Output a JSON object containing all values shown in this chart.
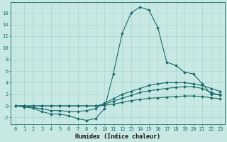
{
  "title": "",
  "xlabel": "Humidex (Indice chaleur)",
  "ylabel": "",
  "bg_color": "#c8e8e4",
  "grid_color": "#a8d4d0",
  "line_color": "#1a6b6b",
  "spine_color": "#1a6b6b",
  "xlim": [
    -0.5,
    23.5
  ],
  "ylim": [
    -3.2,
    17.8
  ],
  "x": [
    0,
    1,
    2,
    3,
    4,
    5,
    6,
    7,
    8,
    9,
    10,
    11,
    12,
    13,
    14,
    15,
    16,
    17,
    18,
    19,
    20,
    21,
    22,
    23
  ],
  "line1": [
    0.0,
    -0.2,
    -0.4,
    -1.0,
    -1.4,
    -1.4,
    -1.7,
    -2.2,
    -2.5,
    -2.2,
    -0.5,
    5.5,
    12.5,
    16.0,
    17.0,
    16.5,
    13.5,
    7.5,
    7.0,
    5.8,
    5.5,
    3.8,
    2.0,
    2.0
  ],
  "line2": [
    0.0,
    0.0,
    -0.3,
    -0.5,
    -0.8,
    -0.8,
    -1.0,
    -1.0,
    -0.8,
    -0.5,
    0.5,
    1.2,
    2.0,
    2.5,
    3.0,
    3.5,
    3.8,
    4.0,
    4.0,
    4.0,
    3.8,
    3.5,
    3.0,
    2.5
  ],
  "line3": [
    0.0,
    0.0,
    0.0,
    0.0,
    0.0,
    0.0,
    0.0,
    0.0,
    0.0,
    0.0,
    0.3,
    0.8,
    1.3,
    1.8,
    2.3,
    2.6,
    2.8,
    3.0,
    3.2,
    3.3,
    3.3,
    3.0,
    2.3,
    1.8
  ],
  "line4": [
    0.0,
    0.0,
    0.0,
    0.0,
    0.0,
    0.0,
    0.0,
    0.0,
    0.0,
    0.0,
    0.1,
    0.3,
    0.6,
    0.9,
    1.1,
    1.3,
    1.4,
    1.5,
    1.6,
    1.7,
    1.7,
    1.6,
    1.4,
    1.2
  ],
  "yticks": [
    -2,
    0,
    2,
    4,
    6,
    8,
    10,
    12,
    14,
    16
  ],
  "xticks": [
    0,
    1,
    2,
    3,
    4,
    5,
    6,
    7,
    8,
    9,
    10,
    11,
    12,
    13,
    14,
    15,
    16,
    17,
    18,
    19,
    20,
    21,
    22,
    23
  ],
  "tick_fontsize": 5,
  "xlabel_fontsize": 6,
  "lw": 0.8,
  "ms": 2.0
}
